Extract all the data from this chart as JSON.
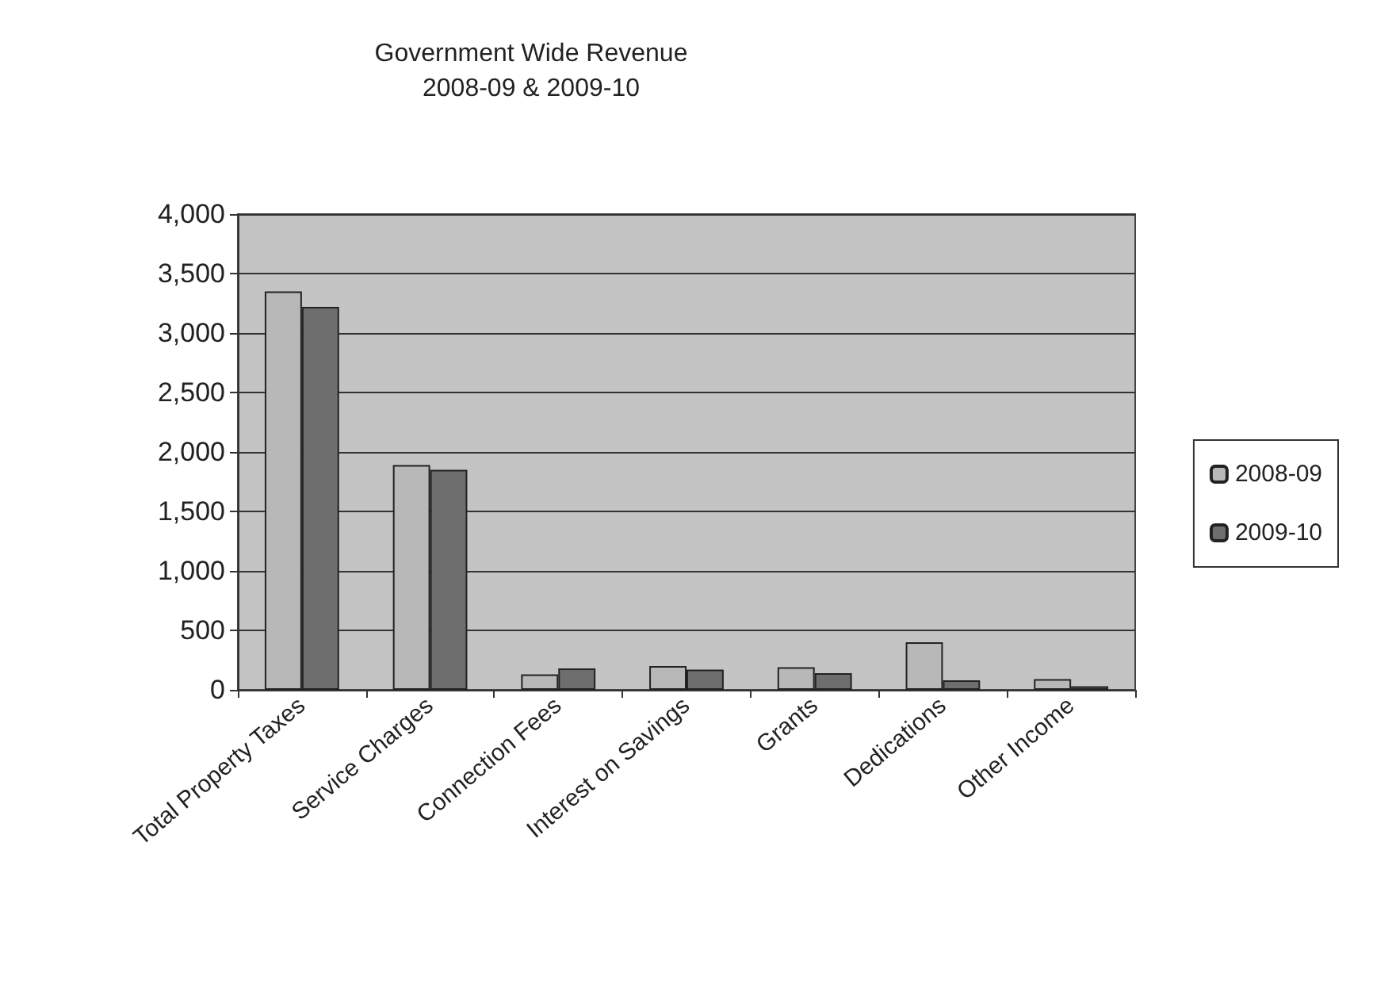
{
  "chart_data": {
    "type": "bar",
    "title": "Government Wide Revenue\n2008-09 & 2009-10",
    "categories": [
      "Total Property Taxes",
      "Service Charges",
      "Connection Fees",
      "Interest on Savings",
      "Grants",
      "Dedications",
      "Other Income"
    ],
    "series": [
      {
        "name": "2008-09",
        "color": "#b8b8b8",
        "values": [
          3350,
          1890,
          130,
          200,
          190,
          400,
          90
        ]
      },
      {
        "name": "2009-10",
        "color": "#6e6e6e",
        "values": [
          3220,
          1850,
          180,
          170,
          140,
          80,
          30
        ]
      }
    ],
    "ylim": [
      0,
      4000
    ],
    "yticks": [
      0,
      500,
      {
        "value": 1000,
        "label": "1,000"
      },
      {
        "value": 1500,
        "label": "1,500"
      },
      {
        "value": 2000,
        "label": "2,000"
      },
      {
        "value": 2500,
        "label": "2,500"
      },
      {
        "value": 3000,
        "label": "3,000"
      },
      {
        "value": 3500,
        "label": "3,500"
      },
      {
        "value": 4000,
        "label": "4,000"
      }
    ],
    "grid": "y",
    "legend": "right"
  }
}
